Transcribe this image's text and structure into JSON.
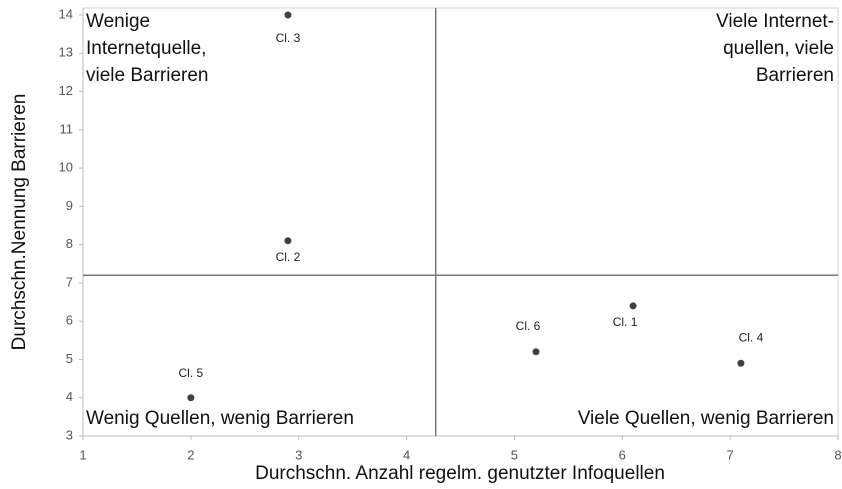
{
  "chart_data": {
    "type": "scatter",
    "x_label": "Durchschn. Anzahl regelm. genutzter Infoquellen",
    "y_label": "Durchschn.Nennung Barrieren",
    "xlim": [
      1,
      8
    ],
    "xticks": [
      1,
      2,
      3,
      4,
      5,
      6,
      7,
      8
    ],
    "ylim": [
      3,
      14
    ],
    "yticks": [
      3,
      4,
      5,
      6,
      7,
      8,
      9,
      10,
      11,
      12,
      13,
      14
    ],
    "color": "#404040",
    "points": {
      "labels": [
        "Cl. 3",
        "Cl. 2",
        "Cl. 5",
        "Cl. 6",
        "Cl. 1",
        "Cl. 4"
      ],
      "x": [
        2.9,
        2.9,
        2.0,
        5.2,
        6.1,
        7.1
      ],
      "y": [
        14,
        8.1,
        4.0,
        5.2,
        6.4,
        4.9
      ]
    },
    "reference_lines": {
      "x": 4.27,
      "y": 7.2
    },
    "quadrants": {
      "top_left": [
        "Wenige",
        "Internetquelle,",
        "viele Barrieren"
      ],
      "top_right": [
        "Viele Internet-",
        "quellen, viele",
        "Barrieren"
      ],
      "bottom_left": [
        "Wenig Quellen, wenig Barrieren"
      ],
      "bottom_right": [
        "Viele Quellen, wenig Barrieren"
      ]
    }
  }
}
